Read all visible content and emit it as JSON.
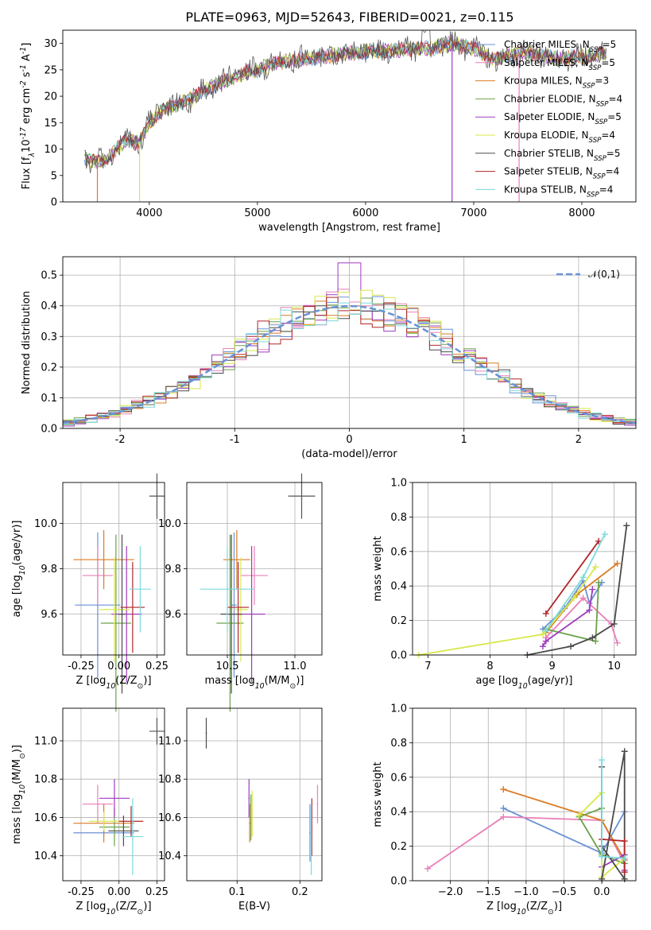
{
  "figure": {
    "title": "PLATE=0963, MJD=52643, FIBERID=0021, z=0.115"
  },
  "colors": {
    "series": [
      "#6a91d6",
      "#ea7fb8",
      "#dc7b24",
      "#6aa24a",
      "#9e3bbf",
      "#d8e84a",
      "#4a4a4a",
      "#b0262a",
      "#7dd8dc"
    ]
  },
  "chart_data": [
    {
      "id": "spectrum",
      "type": "line",
      "title": "PLATE=0963, MJD=52643, FIBERID=0021, z=0.115",
      "xlabel": "wavelength [Angstrom, rest frame]",
      "ylabel": "Flux [f$_\\lambda$10$^{-17}$ erg cm$^{-2}$ s$^{-1}$ A$^{-1}$]",
      "xlim": [
        3200,
        8500
      ],
      "ylim": [
        0,
        32.5
      ],
      "xticks": [
        4000,
        5000,
        6000,
        7000,
        8000
      ],
      "yticks": [
        0,
        5,
        10,
        15,
        20,
        25,
        30
      ],
      "grid": false,
      "legend_position": "right",
      "x": [
        3400,
        3500,
        3600,
        3700,
        3800,
        3900,
        4000,
        4100,
        4200,
        4300,
        4400,
        4500,
        4600,
        4700,
        4800,
        4900,
        5000,
        5200,
        5400,
        5600,
        5800,
        6000,
        6200,
        6400,
        6600,
        6800,
        7000,
        7200,
        7400,
        7600,
        7800,
        8000,
        8200
      ],
      "flux": [
        8,
        7.5,
        8,
        10,
        12,
        11,
        15,
        17,
        18,
        19,
        19.5,
        21,
        22,
        23,
        23.5,
        24.5,
        25,
        26.5,
        27,
        27.5,
        28,
        28.5,
        28.5,
        29,
        29,
        30,
        29,
        27,
        28,
        28,
        27,
        27.5,
        28
      ],
      "series": [
        {
          "name": "Chabrier MILES, N$_{SSP}$=5"
        },
        {
          "name": "Salpeter MILES, N$_{SSP}$=5"
        },
        {
          "name": "Kroupa MILES, N$_{SSP}$=3"
        },
        {
          "name": "Chabrier ELODIE, N$_{SSP}$=4"
        },
        {
          "name": "Salpeter ELODIE, N$_{SSP}$=5"
        },
        {
          "name": "Kroupa ELODIE, N$_{SSP}$=4"
        },
        {
          "name": "Chabrier STELIB, N$_{SSP}$=5"
        },
        {
          "name": "Salpeter STELIB, N$_{SSP}$=4"
        },
        {
          "name": "Kroupa STELIB, N$_{SSP}$=4"
        }
      ]
    },
    {
      "id": "residuals",
      "type": "bar",
      "xlabel": "(data-model)/error",
      "ylabel": "Normed distribution",
      "xlim": [
        -2.5,
        2.5
      ],
      "ylim": [
        0,
        0.56
      ],
      "xticks": [
        -2,
        -1,
        0,
        1,
        2
      ],
      "yticks": [
        0.0,
        0.1,
        0.2,
        0.3,
        0.4,
        0.5
      ],
      "grid": true,
      "legend_position": "top-right",
      "gaussian_label": "$\\mathcal{N}(0,1)$",
      "bin_width": 0.1
    },
    {
      "id": "age-vs-Z",
      "type": "scatter",
      "xlabel": "Z [log$_{10}$(Z/Z$_\\odot$)]",
      "ylabel": "age  [log$_{10}$(age/yr)]",
      "xlim": [
        -0.37,
        0.3
      ],
      "ylim": [
        9.42,
        10.18
      ],
      "xticks": [
        -0.25,
        0.0,
        0.25
      ],
      "yticks": [
        9.6,
        9.8,
        10.0
      ],
      "grid": true,
      "points": [
        {
          "x": -0.14,
          "y": 9.64,
          "xerr": 0.15,
          "yerr": 0.32
        },
        {
          "x": -0.14,
          "y": 9.77,
          "xerr": 0.1,
          "yerr": 0.13
        },
        {
          "x": -0.1,
          "y": 9.84,
          "xerr": 0.2,
          "yerr": 0.13
        },
        {
          "x": -0.02,
          "y": 9.56,
          "xerr": 0.1,
          "yerr": 0.39
        },
        {
          "x": 0.05,
          "y": 9.6,
          "xerr": 0.1,
          "yerr": 0.3
        },
        {
          "x": -0.03,
          "y": 9.62,
          "xerr": 0.1,
          "yerr": 0.23
        },
        {
          "x": 0.02,
          "y": 9.6,
          "xerr": 0.02,
          "yerr": 0.35
        },
        {
          "x": 0.09,
          "y": 9.63,
          "xerr": 0.08,
          "yerr": 0.2
        },
        {
          "x": 0.14,
          "y": 9.71,
          "xerr": 0.07,
          "yerr": 0.19
        }
      ],
      "ref_point": {
        "x": 0.25,
        "y": 10.12,
        "xerr": 0.05,
        "yerr": 0.1
      }
    },
    {
      "id": "age-vs-mass",
      "type": "scatter",
      "xlabel": "mass [log$_{10}$(M/M$_\\odot$)]",
      "ylabel": "",
      "xlim": [
        10.2,
        11.2
      ],
      "ylim": [
        9.42,
        10.18
      ],
      "xticks": [
        10.5,
        11.0
      ],
      "yticks": [
        9.6,
        9.8,
        10.0
      ],
      "grid": true,
      "points": [
        {
          "x": 10.55,
          "y": 9.64,
          "xerr": 0.02,
          "yerr": 0.32
        },
        {
          "x": 10.7,
          "y": 9.77,
          "xerr": 0.1,
          "yerr": 0.13
        },
        {
          "x": 10.57,
          "y": 9.84,
          "xerr": 0.1,
          "yerr": 0.13
        },
        {
          "x": 10.52,
          "y": 9.56,
          "xerr": 0.1,
          "yerr": 0.39
        },
        {
          "x": 10.68,
          "y": 9.6,
          "xerr": 0.1,
          "yerr": 0.3
        },
        {
          "x": 10.6,
          "y": 9.62,
          "xerr": 0.05,
          "yerr": 0.23
        },
        {
          "x": 10.53,
          "y": 9.6,
          "xerr": 0.08,
          "yerr": 0.35
        },
        {
          "x": 10.58,
          "y": 9.63,
          "xerr": 0.08,
          "yerr": 0.2
        },
        {
          "x": 10.5,
          "y": 9.71,
          "xerr": 0.2,
          "yerr": 0.19
        }
      ],
      "ref_point": {
        "x": 11.05,
        "y": 10.12,
        "xerr": 0.1,
        "yerr": 0.1
      }
    },
    {
      "id": "massweight-vs-age",
      "type": "line",
      "xlabel": "age  [log$_{10}$(age/yr)]",
      "ylabel": "mass weight",
      "xlim": [
        6.75,
        10.35
      ],
      "ylim": [
        0,
        1.0
      ],
      "xticks": [
        7,
        8,
        9,
        10
      ],
      "yticks": [
        0.0,
        0.2,
        0.4,
        0.6,
        0.8,
        1.0
      ],
      "grid": true,
      "series": [
        {
          "points": [
            [
              8.85,
              0.15
            ],
            [
              9.2,
              0.27
            ],
            [
              9.5,
              0.43
            ],
            [
              9.6,
              0.3
            ],
            [
              9.8,
              0.42
            ]
          ]
        },
        {
          "points": [
            [
              8.9,
              0.1
            ],
            [
              9.5,
              0.33
            ],
            [
              9.95,
              0.18
            ],
            [
              10.05,
              0.07
            ]
          ]
        },
        {
          "points": [
            [
              8.9,
              0.13
            ],
            [
              9.4,
              0.35
            ],
            [
              10.05,
              0.53
            ]
          ]
        },
        {
          "points": [
            [
              8.9,
              0.15
            ],
            [
              9.7,
              0.08
            ],
            [
              9.75,
              0.42
            ]
          ]
        },
        {
          "points": [
            [
              8.85,
              0.05
            ],
            [
              8.9,
              0.08
            ],
            [
              9.6,
              0.26
            ],
            [
              9.65,
              0.38
            ]
          ]
        },
        {
          "points": [
            [
              6.85,
              0.0
            ],
            [
              8.85,
              0.12
            ],
            [
              9.35,
              0.33
            ],
            [
              9.7,
              0.51
            ]
          ]
        },
        {
          "points": [
            [
              8.6,
              0.0
            ],
            [
              9.3,
              0.05
            ],
            [
              9.65,
              0.1
            ],
            [
              10.0,
              0.18
            ],
            [
              10.2,
              0.75
            ]
          ]
        },
        {
          "points": [
            [
              8.9,
              0.24
            ],
            [
              9.75,
              0.66
            ]
          ]
        },
        {
          "points": [
            [
              8.9,
              0.14
            ],
            [
              9.5,
              0.45
            ],
            [
              9.85,
              0.7
            ]
          ]
        }
      ]
    },
    {
      "id": "mass-vs-Z",
      "type": "scatter",
      "xlabel": "Z [log$_{10}$(Z/Z$_\\odot$)]",
      "ylabel": "mass [log$_{10}$(M/M$_\\odot$)]",
      "xlim": [
        -0.37,
        0.3
      ],
      "ylim": [
        10.27,
        11.17
      ],
      "xticks": [
        -0.25,
        0.0,
        0.25
      ],
      "yticks": [
        10.4,
        10.6,
        10.8,
        11.0
      ],
      "grid": true,
      "points": [
        {
          "x": -0.1,
          "y": 10.52,
          "xerr": 0.2,
          "yerr": 0.02
        },
        {
          "x": -0.14,
          "y": 10.67,
          "xerr": 0.1,
          "yerr": 0.1
        },
        {
          "x": -0.1,
          "y": 10.57,
          "xerr": 0.2,
          "yerr": 0.1
        },
        {
          "x": -0.03,
          "y": 10.55,
          "xerr": 0.1,
          "yerr": 0.1
        },
        {
          "x": -0.03,
          "y": 10.7,
          "xerr": 0.1,
          "yerr": 0.1
        },
        {
          "x": -0.1,
          "y": 10.58,
          "xerr": 0.1,
          "yerr": 0.05
        },
        {
          "x": 0.03,
          "y": 10.53,
          "xerr": 0.1,
          "yerr": 0.08
        },
        {
          "x": 0.08,
          "y": 10.58,
          "xerr": 0.08,
          "yerr": 0.08
        },
        {
          "x": 0.09,
          "y": 10.5,
          "xerr": 0.07,
          "yerr": 0.2
        }
      ],
      "ref_point": {
        "x": 0.25,
        "y": 11.05,
        "xerr": 0.05,
        "yerr": 0.07
      }
    },
    {
      "id": "mass-vs-EBV",
      "type": "scatter",
      "xlabel": "E(B-V)",
      "ylabel": "",
      "xlim": [
        0.02,
        0.235
      ],
      "ylim": [
        10.27,
        11.17
      ],
      "xticks": [
        0.1,
        0.2
      ],
      "yticks": [
        10.4,
        10.6,
        10.8,
        11.0
      ],
      "grid": true,
      "points": [
        {
          "x": 0.216,
          "y": 10.52,
          "xerr": 0.001,
          "yerr": 0.15
        },
        {
          "x": 0.228,
          "y": 10.67,
          "xerr": 0.001,
          "yerr": 0.1
        },
        {
          "x": 0.12,
          "y": 10.57,
          "xerr": 0.001,
          "yerr": 0.1
        },
        {
          "x": 0.122,
          "y": 10.6,
          "xerr": 0.001,
          "yerr": 0.12
        },
        {
          "x": 0.119,
          "y": 10.7,
          "xerr": 0.001,
          "yerr": 0.1
        },
        {
          "x": 0.124,
          "y": 10.62,
          "xerr": 0.001,
          "yerr": 0.12
        },
        {
          "x": 0.051,
          "y": 11.04,
          "xerr": 0.001,
          "yerr": 0.08
        },
        {
          "x": 0.219,
          "y": 10.55,
          "xerr": 0.001,
          "yerr": 0.15
        },
        {
          "x": 0.218,
          "y": 10.48,
          "xerr": 0.001,
          "yerr": 0.18
        }
      ]
    },
    {
      "id": "massweight-vs-Z",
      "type": "line",
      "xlabel": "Z [log$_{10}$(Z/Z$_\\odot$)]",
      "ylabel": "mass weight",
      "xlim": [
        -2.5,
        0.45
      ],
      "ylim": [
        0,
        1.0
      ],
      "xticks": [
        -2.0,
        -1.5,
        -1.0,
        -0.5,
        0.0
      ],
      "yticks": [
        0.0,
        0.2,
        0.4,
        0.6,
        0.8,
        1.0
      ],
      "grid": true,
      "series": [
        {
          "points": [
            [
              -1.3,
              0.42
            ],
            [
              0.0,
              0.16
            ],
            [
              0.3,
              0.4
            ]
          ]
        },
        {
          "points": [
            [
              -2.3,
              0.07
            ],
            [
              -1.3,
              0.37
            ],
            [
              0.0,
              0.35
            ],
            [
              0.3,
              0.1
            ]
          ]
        },
        {
          "points": [
            [
              -1.3,
              0.53
            ],
            [
              0.0,
              0.35
            ],
            [
              0.3,
              0.12
            ]
          ]
        },
        {
          "points": [
            [
              0.0,
              0.42
            ],
            [
              -0.3,
              0.37
            ],
            [
              0.0,
              0.15
            ],
            [
              0.3,
              0.1
            ]
          ]
        },
        {
          "points": [
            [
              0.0,
              0.08
            ],
            [
              0.3,
              0.15
            ],
            [
              0.3,
              0.06
            ]
          ]
        },
        {
          "points": [
            [
              -0.3,
              0.38
            ],
            [
              0.0,
              0.51
            ],
            [
              0.0,
              0.02
            ],
            [
              0.3,
              0.13
            ]
          ]
        },
        {
          "points": [
            [
              0.0,
              0.01
            ],
            [
              0.3,
              0.75
            ],
            [
              0.3,
              0.01
            ],
            [
              0.0,
              0.2
            ],
            [
              0.0,
              0.66
            ]
          ]
        },
        {
          "points": [
            [
              0.0,
              0.24
            ],
            [
              0.3,
              0.23
            ],
            [
              0.3,
              0.05
            ]
          ]
        },
        {
          "points": [
            [
              0.0,
              0.7
            ],
            [
              0.0,
              0.14
            ],
            [
              0.3,
              0.13
            ]
          ]
        }
      ]
    }
  ]
}
